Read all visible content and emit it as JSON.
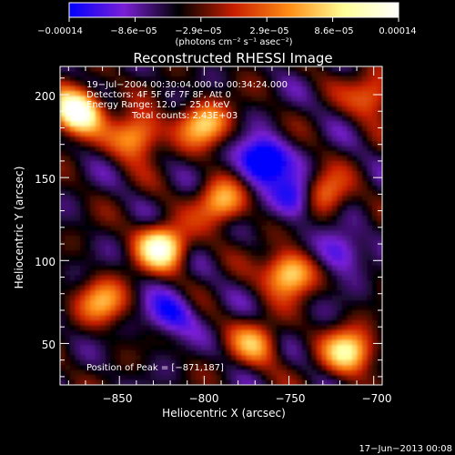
{
  "chart_data": {
    "type": "heatmap",
    "title": "Reconstructed RHESSI Image",
    "xlabel": "Heliocentric X (arcsec)",
    "ylabel": "Heliocentric Y (arcsec)",
    "xlim": [
      -885,
      -695
    ],
    "ylim": [
      25,
      217
    ],
    "x_ticks": [
      -850,
      -800,
      -750,
      -700
    ],
    "x_tick_labels": [
      "−850",
      "−800",
      "−750",
      "−700"
    ],
    "y_ticks": [
      50,
      100,
      150,
      200
    ],
    "y_tick_labels": [
      "50",
      "100",
      "150",
      "200"
    ],
    "colorbar": {
      "range": [
        -0.00014,
        0.00014
      ],
      "tick_labels": [
        "−0.00014",
        "−8.6e−05",
        "−2.9e−05",
        "2.9e−05",
        "8.6e−05",
        "0.00014"
      ],
      "unit_label": "(photons cm⁻² s⁻¹ asec⁻²)",
      "colors": [
        "#0000ff",
        "#7a1fd6",
        "#000000",
        "#c81e00",
        "#ff8c14",
        "#ffff96",
        "#ffffff"
      ]
    },
    "annotations": [
      "19−Jul−2004 00:30:04.000 to 00:34:24.000",
      "Detectors: 4F 5F 6F 7F 8F, Att 0",
      "Energy Range: 12.0 − 25.0 keV",
      "Total counts: 2.43E+03"
    ],
    "peak_label": "Position of Peak = [−871,187]",
    "peak": [
      -871,
      187
    ],
    "sources": [
      {
        "x": -875,
        "y": 190,
        "v": 1.0
      },
      {
        "x": -840,
        "y": 175,
        "v": 0.6
      },
      {
        "x": -825,
        "y": 108,
        "v": 0.85
      },
      {
        "x": -800,
        "y": 182,
        "v": 0.6
      },
      {
        "x": -750,
        "y": 92,
        "v": 0.7
      },
      {
        "x": -715,
        "y": 45,
        "v": 0.7
      },
      {
        "x": -860,
        "y": 75,
        "v": 0.5
      },
      {
        "x": -790,
        "y": 135,
        "v": 0.55
      },
      {
        "x": -730,
        "y": 140,
        "v": 0.5
      },
      {
        "x": -700,
        "y": 200,
        "v": 0.45
      },
      {
        "x": -770,
        "y": 50,
        "v": 0.45
      },
      {
        "x": -765,
        "y": 160,
        "v": -0.7
      },
      {
        "x": -745,
        "y": 138,
        "v": -0.5
      },
      {
        "x": -820,
        "y": 68,
        "v": -0.4
      },
      {
        "x": -720,
        "y": 105,
        "v": -0.35
      }
    ]
  },
  "footer": {
    "date": "17−Jun−2013 00:08"
  }
}
